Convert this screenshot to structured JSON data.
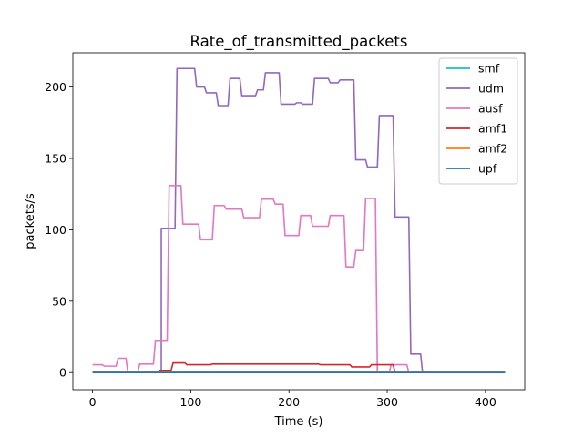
{
  "chart_data": {
    "type": "line",
    "title": "Rate_of_transmitted_packets",
    "xlabel": "Time (s)",
    "ylabel": "packets/s",
    "xlim": [
      -20,
      440
    ],
    "ylim": [
      -12,
      224
    ],
    "xticks": [
      0,
      100,
      200,
      300,
      400
    ],
    "yticks": [
      0,
      50,
      100,
      150,
      200
    ],
    "grid": false,
    "legend_position": "top-right",
    "series": [
      {
        "name": "smf",
        "color": "#17becf",
        "points": [
          [
            0,
            0.3
          ],
          [
            420,
            0.3
          ]
        ]
      },
      {
        "name": "udm",
        "color": "#9467bd",
        "points": [
          [
            0,
            0
          ],
          [
            68,
            0
          ],
          [
            70,
            0
          ],
          [
            70,
            101
          ],
          [
            84,
            101
          ],
          [
            86,
            213
          ],
          [
            104,
            213
          ],
          [
            106,
            200
          ],
          [
            114,
            200
          ],
          [
            116,
            196
          ],
          [
            126,
            196
          ],
          [
            128,
            187
          ],
          [
            138,
            187
          ],
          [
            140,
            206
          ],
          [
            150,
            206
          ],
          [
            152,
            194
          ],
          [
            166,
            194
          ],
          [
            168,
            198
          ],
          [
            174,
            198
          ],
          [
            176,
            210
          ],
          [
            190,
            210
          ],
          [
            192,
            188
          ],
          [
            206,
            188
          ],
          [
            208,
            189
          ],
          [
            212,
            189
          ],
          [
            214,
            188
          ],
          [
            224,
            188
          ],
          [
            226,
            206
          ],
          [
            240,
            206
          ],
          [
            242,
            203
          ],
          [
            250,
            203
          ],
          [
            252,
            205
          ],
          [
            266,
            205
          ],
          [
            268,
            149
          ],
          [
            278,
            149
          ],
          [
            280,
            144
          ],
          [
            290,
            144
          ],
          [
            292,
            180
          ],
          [
            306,
            180
          ],
          [
            308,
            109
          ],
          [
            322,
            109
          ],
          [
            324,
            13
          ],
          [
            334,
            13
          ],
          [
            336,
            0
          ],
          [
            420,
            0
          ]
        ]
      },
      {
        "name": "ausf",
        "color": "#e377c2",
        "points": [
          [
            0,
            5.5
          ],
          [
            10,
            5.5
          ],
          [
            12,
            4.5
          ],
          [
            24,
            4.5
          ],
          [
            26,
            10
          ],
          [
            34,
            10
          ],
          [
            36,
            0
          ],
          [
            46,
            0
          ],
          [
            48,
            6
          ],
          [
            62,
            6
          ],
          [
            64,
            22
          ],
          [
            76,
            22
          ],
          [
            78,
            131
          ],
          [
            90,
            131
          ],
          [
            92,
            104
          ],
          [
            108,
            104
          ],
          [
            110,
            93
          ],
          [
            122,
            93
          ],
          [
            124,
            117
          ],
          [
            134,
            117
          ],
          [
            136,
            114.5
          ],
          [
            152,
            114.5
          ],
          [
            154,
            108.5
          ],
          [
            170,
            108.5
          ],
          [
            172,
            121.5
          ],
          [
            184,
            121.5
          ],
          [
            186,
            118
          ],
          [
            194,
            118
          ],
          [
            196,
            96
          ],
          [
            210,
            96
          ],
          [
            212,
            110
          ],
          [
            222,
            110
          ],
          [
            224,
            102.5
          ],
          [
            240,
            102.5
          ],
          [
            242,
            110
          ],
          [
            256,
            110
          ],
          [
            258,
            74
          ],
          [
            266,
            74
          ],
          [
            268,
            85.5
          ],
          [
            276,
            85.5
          ],
          [
            278,
            122
          ],
          [
            288,
            122
          ],
          [
            290,
            0
          ],
          [
            302,
            0
          ],
          [
            304,
            5.5
          ],
          [
            320,
            5.5
          ],
          [
            322,
            0
          ],
          [
            420,
            0
          ]
        ]
      },
      {
        "name": "amf1",
        "color": "#d62728",
        "points": [
          [
            0,
            0
          ],
          [
            66,
            0
          ],
          [
            68,
            1.5
          ],
          [
            80,
            1.5
          ],
          [
            82,
            6.8
          ],
          [
            94,
            6.8
          ],
          [
            96,
            5.5
          ],
          [
            120,
            5.5
          ],
          [
            122,
            6
          ],
          [
            230,
            6
          ],
          [
            232,
            5.5
          ],
          [
            262,
            5.5
          ],
          [
            264,
            4
          ],
          [
            282,
            4
          ],
          [
            284,
            5.5
          ],
          [
            306,
            5.5
          ],
          [
            308,
            0
          ],
          [
            420,
            0
          ]
        ]
      },
      {
        "name": "amf2",
        "color": "#ff7f0e",
        "points": [
          [
            0,
            0.2
          ],
          [
            420,
            0.2
          ]
        ]
      },
      {
        "name": "upf",
        "color": "#1f77b4",
        "points": [
          [
            0,
            0
          ],
          [
            420,
            0
          ]
        ]
      }
    ]
  }
}
